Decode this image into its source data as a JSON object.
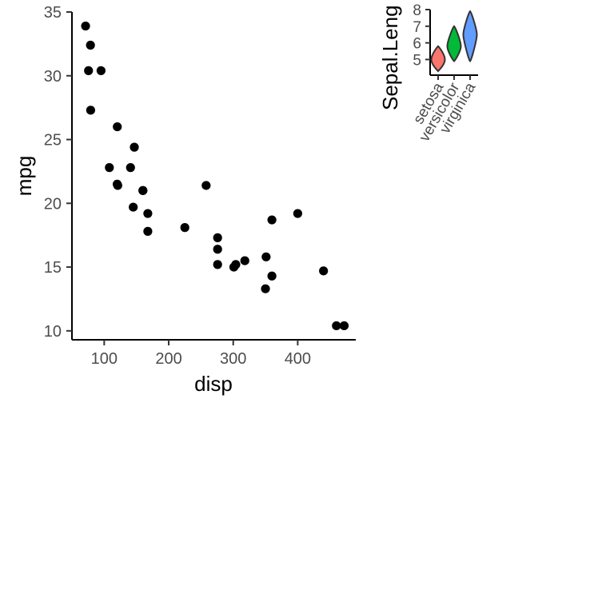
{
  "chart_data": [
    {
      "type": "scatter",
      "xlabel": "disp",
      "ylabel": "mpg",
      "xlim": [
        50,
        490
      ],
      "ylim": [
        9.3,
        35
      ],
      "x_ticks": [
        100,
        200,
        300,
        400
      ],
      "y_ticks": [
        10,
        15,
        20,
        25,
        30,
        35
      ],
      "grid": false,
      "point_color": "#000000",
      "points": [
        {
          "x": 160,
          "y": 21.0
        },
        {
          "x": 160,
          "y": 21.0
        },
        {
          "x": 108,
          "y": 22.8
        },
        {
          "x": 258,
          "y": 21.4
        },
        {
          "x": 360,
          "y": 18.7
        },
        {
          "x": 225,
          "y": 18.1
        },
        {
          "x": 360,
          "y": 14.3
        },
        {
          "x": 146.7,
          "y": 24.4
        },
        {
          "x": 140.8,
          "y": 22.8
        },
        {
          "x": 167.6,
          "y": 19.2
        },
        {
          "x": 167.6,
          "y": 17.8
        },
        {
          "x": 275.8,
          "y": 16.4
        },
        {
          "x": 275.8,
          "y": 17.3
        },
        {
          "x": 275.8,
          "y": 15.2
        },
        {
          "x": 472,
          "y": 10.4
        },
        {
          "x": 460,
          "y": 10.4
        },
        {
          "x": 440,
          "y": 14.7
        },
        {
          "x": 78.7,
          "y": 32.4
        },
        {
          "x": 75.7,
          "y": 30.4
        },
        {
          "x": 71.1,
          "y": 33.9
        },
        {
          "x": 120.1,
          "y": 21.5
        },
        {
          "x": 318,
          "y": 15.5
        },
        {
          "x": 304,
          "y": 15.2
        },
        {
          "x": 350,
          "y": 13.3
        },
        {
          "x": 400,
          "y": 19.2
        },
        {
          "x": 79,
          "y": 27.3
        },
        {
          "x": 120.3,
          "y": 26.0
        },
        {
          "x": 95.1,
          "y": 30.4
        },
        {
          "x": 351,
          "y": 15.8
        },
        {
          "x": 145,
          "y": 19.7
        },
        {
          "x": 301,
          "y": 15.0
        },
        {
          "x": 121,
          "y": 21.4
        }
      ]
    },
    {
      "type": "violin",
      "ylabel": "Sepal.Leng",
      "categories": [
        "setosa",
        "versicolor",
        "virginica"
      ],
      "y_ticks": [
        5,
        6,
        7,
        8
      ],
      "ylim": [
        4.3,
        7.9
      ],
      "series": [
        {
          "name": "setosa",
          "color": "#F8766D",
          "min": 4.3,
          "max": 5.8,
          "peak": 5.0
        },
        {
          "name": "versicolor",
          "color": "#00BA38",
          "min": 4.9,
          "max": 7.0,
          "peak": 5.8
        },
        {
          "name": "virginica",
          "color": "#619CFF",
          "min": 4.9,
          "max": 7.9,
          "peak": 6.5
        }
      ]
    }
  ]
}
